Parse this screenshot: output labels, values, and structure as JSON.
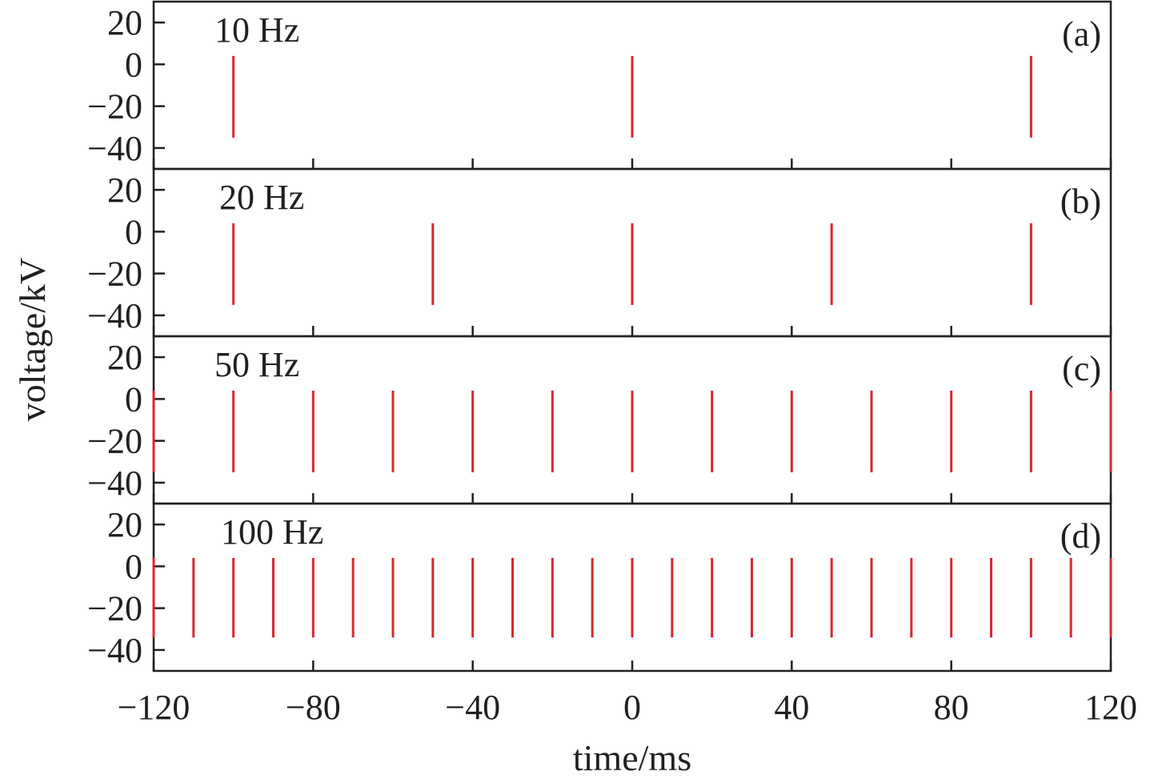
{
  "chart_data": {
    "type": "line",
    "xlabel": "time/ms",
    "ylabel": "voltage/kV",
    "xlim": [
      -120,
      120
    ],
    "xticks": [
      -120,
      -80,
      -40,
      0,
      40,
      80,
      120
    ],
    "xtick_labels": [
      "−120",
      "−80",
      "−40",
      "0",
      "40",
      "80",
      "120"
    ],
    "ylim": [
      -50,
      30
    ],
    "yticks": [
      20,
      0,
      -20,
      -40
    ],
    "ytick_labels": [
      "20",
      "0",
      "−20",
      "−40"
    ],
    "series_color": "#d7282f",
    "panels": [
      {
        "title": "10 Hz",
        "tag": "(a)",
        "pulse_times": [
          -100,
          0,
          100
        ],
        "pulse_max": 4,
        "pulse_min": -35
      },
      {
        "title": "20 Hz",
        "tag": "(b)",
        "pulse_times": [
          -100,
          -50,
          0,
          50,
          100
        ],
        "pulse_max": 4,
        "pulse_min": -35
      },
      {
        "title": "50 Hz",
        "tag": "(c)",
        "pulse_times": [
          -120,
          -100,
          -80,
          -60,
          -40,
          -20,
          0,
          20,
          40,
          60,
          80,
          100,
          120
        ],
        "pulse_max": 4,
        "pulse_min": -35
      },
      {
        "title": "100 Hz",
        "tag": "(d)",
        "pulse_times": [
          -120,
          -110,
          -100,
          -90,
          -80,
          -70,
          -60,
          -50,
          -40,
          -30,
          -20,
          -10,
          0,
          10,
          20,
          30,
          40,
          50,
          60,
          70,
          80,
          90,
          100,
          110,
          120
        ],
        "pulse_max": 4,
        "pulse_min": -34
      }
    ]
  }
}
